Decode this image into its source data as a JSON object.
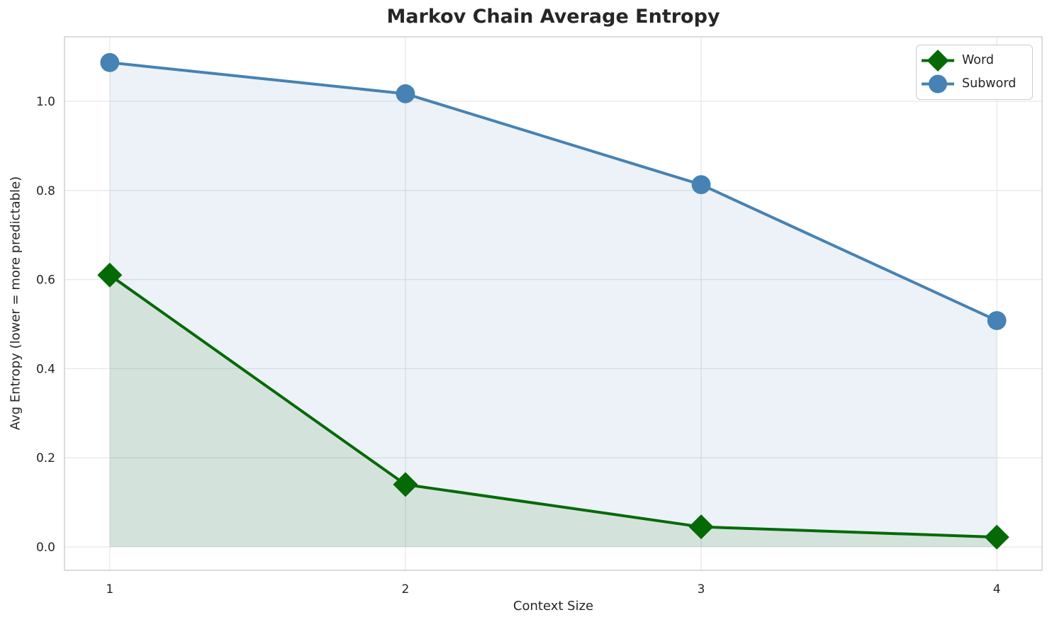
{
  "figure": {
    "title": "Markov Chain Average Entropy"
  },
  "colors": {
    "text": "#262626",
    "grid": "#e7e7e7",
    "spine": "#d4d4d4",
    "word_green": "#056a05",
    "subword_blue": "#4682b4",
    "background": "#ffffff"
  },
  "chart_data": {
    "type": "line",
    "title": "Markov Chain Average Entropy",
    "xlabel": "Context Size",
    "ylabel": "Avg Entropy (lower = more predictable)",
    "x": [
      1,
      2,
      3,
      4
    ],
    "series": [
      {
        "name": "Word",
        "values": [
          0.61,
          0.14,
          0.045,
          0.022
        ],
        "color": "#056a05",
        "marker": "diamond",
        "fill_alpha": 0.11,
        "line_width": 4
      },
      {
        "name": "Subword",
        "values": [
          1.087,
          1.017,
          0.813,
          0.508
        ],
        "color": "#4682b4",
        "marker": "circle",
        "fill_alpha": 0.1,
        "line_width": 4
      }
    ],
    "xticks": [
      1,
      2,
      3,
      4
    ],
    "xtick_labels": [
      "1",
      "2",
      "3",
      "4"
    ],
    "yticks": [
      0.0,
      0.2,
      0.4,
      0.6,
      0.8,
      1.0
    ],
    "ytick_labels": [
      "0.0",
      "0.2",
      "0.4",
      "0.6",
      "0.8",
      "1.0"
    ],
    "xlim": [
      0.847,
      4.153
    ],
    "ylim": [
      -0.0525,
      1.1447
    ],
    "grid": true,
    "area_fill": true,
    "area_baseline": 0,
    "legend_position": "upper right"
  }
}
